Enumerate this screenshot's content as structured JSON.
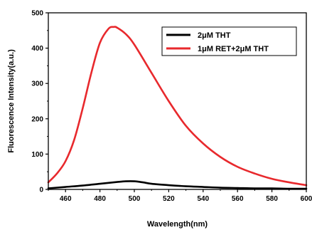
{
  "chart_data": {
    "type": "line",
    "xlabel": "Wavelength(nm)",
    "ylabel": "Fluorescence Intensity(a.u.)",
    "xlim": [
      450,
      600
    ],
    "ylim": [
      0,
      500
    ],
    "xticks": [
      460,
      480,
      500,
      520,
      540,
      560,
      580,
      600
    ],
    "yticks": [
      0,
      100,
      200,
      300,
      400,
      500
    ],
    "legend_position": "top-right",
    "series": [
      {
        "name": "2μM THT",
        "color": "#000000",
        "x": [
          450,
          460,
          470,
          480,
          490,
          495,
          500,
          505,
          510,
          520,
          530,
          540,
          550,
          560,
          570,
          580,
          590,
          600
        ],
        "y": [
          3,
          7,
          11,
          16,
          21,
          23,
          23,
          20,
          16,
          12,
          9,
          7,
          5,
          4,
          3,
          3,
          2,
          2
        ]
      },
      {
        "name": "1μM RET+2μM THT",
        "color": "#e8292d",
        "x": [
          450,
          455,
          460,
          465,
          470,
          475,
          480,
          485,
          488,
          490,
          495,
          500,
          510,
          520,
          530,
          540,
          550,
          560,
          570,
          580,
          590,
          600
        ],
        "y": [
          20,
          45,
          80,
          140,
          230,
          330,
          415,
          455,
          460,
          458,
          440,
          410,
          330,
          250,
          180,
          130,
          92,
          64,
          45,
          30,
          20,
          12
        ]
      }
    ]
  }
}
